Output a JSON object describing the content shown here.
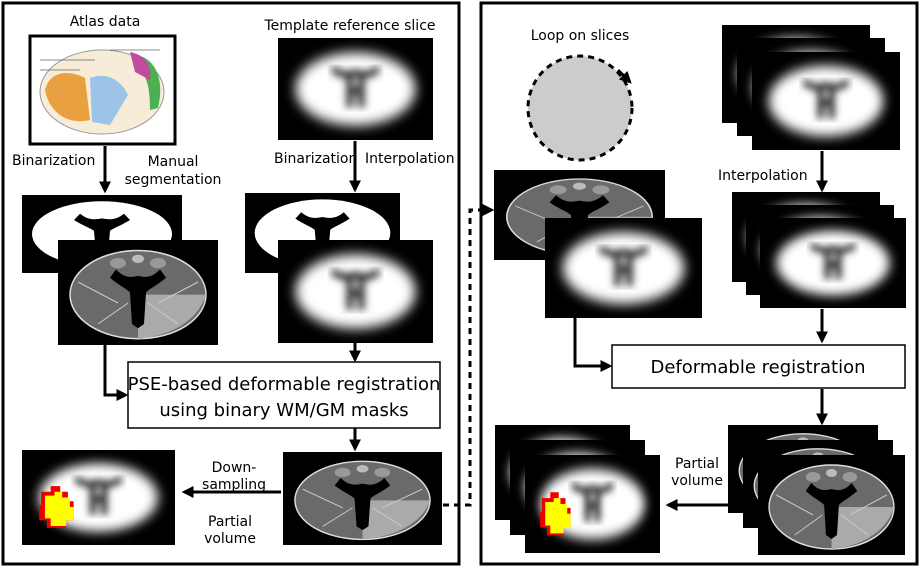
{
  "left_panel": {
    "atlas_label": "Atlas data",
    "template_label": "Template reference slice",
    "binarization_left": "Binarization",
    "manual_segmentation": [
      "Manual",
      "segmentation"
    ],
    "binarization_right": "Binarization",
    "interpolation": "Interpolation",
    "registration_box": [
      "PSE-based deformable registration",
      "using binary WM/GM masks"
    ],
    "downsampling": [
      "Down-",
      "sampling"
    ],
    "partial_volume": [
      "Partial",
      "volume"
    ]
  },
  "right_panel": {
    "loop_label": "Loop on slices",
    "interpolation": "Interpolation",
    "registration_box": "Deformable registration",
    "partial_volume": [
      "Partial",
      "volume"
    ]
  }
}
